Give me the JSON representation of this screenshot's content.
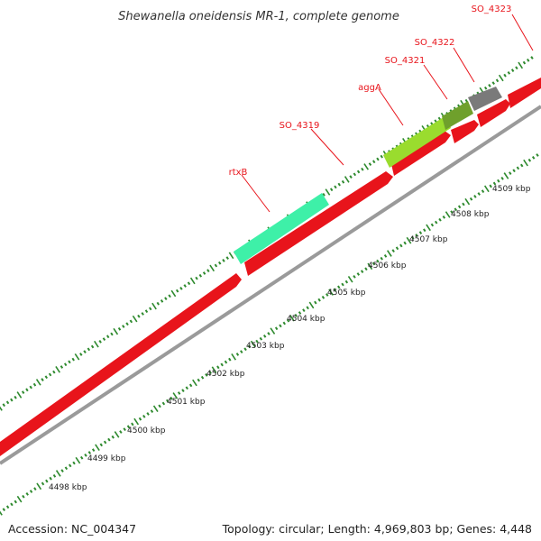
{
  "title": "Shewanella oneidensis MR-1, complete genome",
  "footer": {
    "accession": "Accession: NC_004347",
    "summary": "Topology: circular; Length: 4,969,803 bp; Genes: 4,448"
  },
  "gene_labels": [
    "SO_4323",
    "SO_4322",
    "SO_4321",
    "aggA",
    "SO_4319",
    "rtxB"
  ],
  "tick_labels": [
    "4498 kbp",
    "4499 kbp",
    "4500 kbp",
    "4501 kbp",
    "4502 kbp",
    "4503 kbp",
    "4504 kbp",
    "4505 kbp",
    "4506 kbp",
    "4507 kbp",
    "4508 kbp",
    "4509 kbp"
  ],
  "colors": {
    "forward_cds": "#e8141b",
    "rtxB": "#3ef0a8",
    "aggA": "#9adc2e",
    "SO_4321": "#6fa02c",
    "SO_4322": "#7a7a7a",
    "backbone": "#9a9a9a",
    "ticks": "#2e8a2e"
  }
}
